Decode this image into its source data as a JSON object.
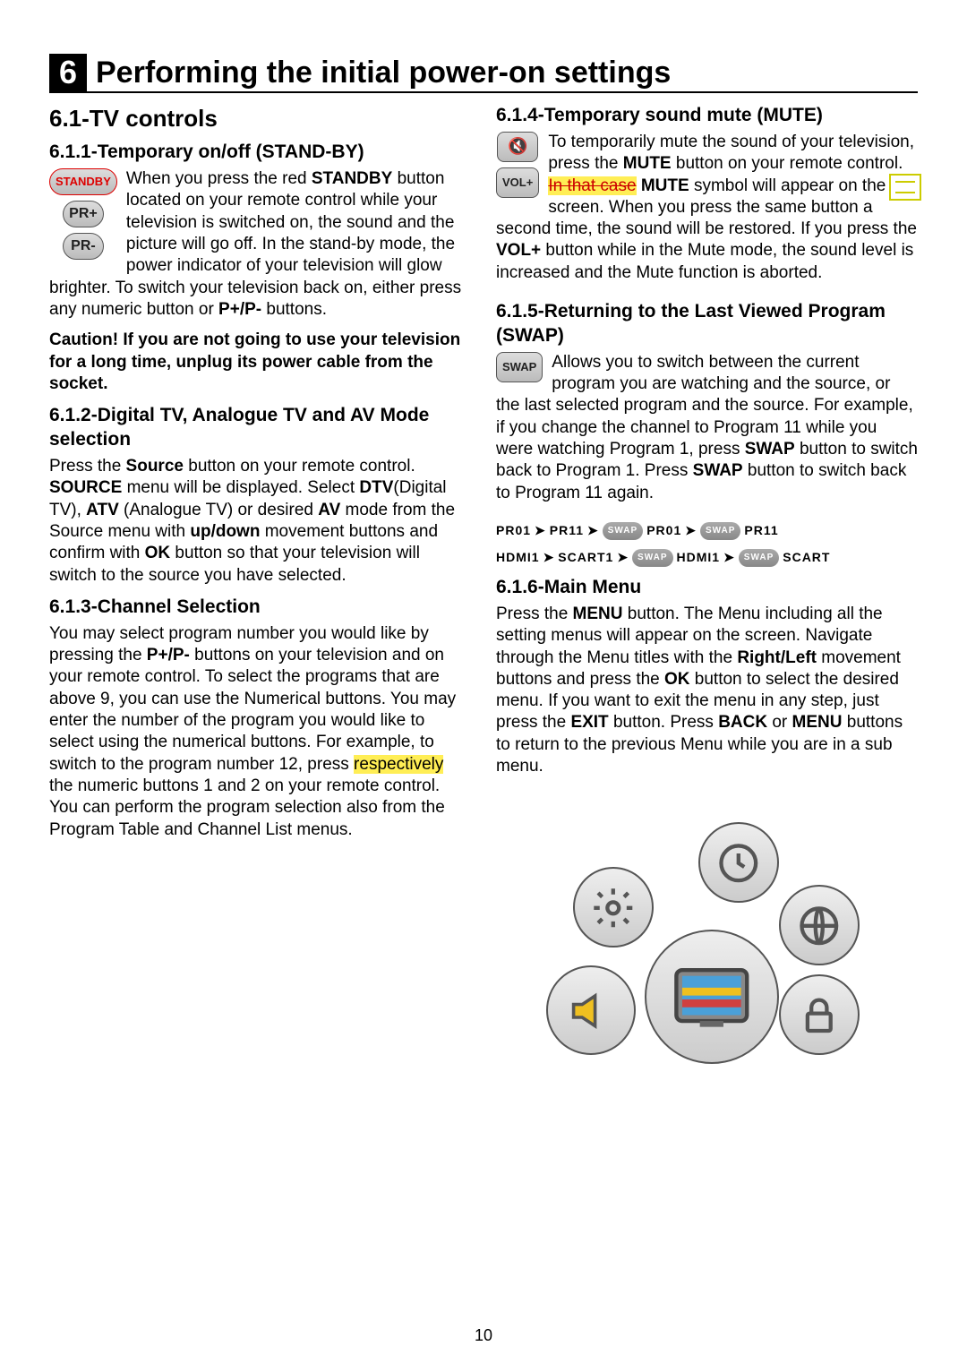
{
  "chapter_number": "6",
  "chapter_title": "Performing the initial power-on settings",
  "page_number": "10",
  "left_col": {
    "h2": "6.1-TV controls",
    "s1_title": "6.1.1-Temporary on/off (STAND-BY)",
    "s1_icons": {
      "standby": "STANDBY",
      "prp": "PR+",
      "prm": "PR-"
    },
    "s1_body_a": "When you press the red ",
    "s1_bold_a": "STANDBY",
    "s1_body_b": " button located on your remote control while your television is switched on, the sound and the picture will go off. In the stand-by mode, the power indicator of your television will glow brighter. To switch your television back on, either press any numeric button or ",
    "s1_bold_b": "P+/P-",
    "s1_body_c": " buttons.",
    "s1_caution": "Caution! If you are not going to use your television for a long time, unplug its power cable from the socket.",
    "s2_title": "6.1.2-Digital TV, Analogue TV and AV Mode selection",
    "s2_body": "Press the <b>Source</b> button on your remote control. <b>SOURCE</b> menu will be displayed. Select <b>DTV</b>(Digital TV), <b>ATV</b> (Analogue TV) or desired <b>AV</b> mode from the Source menu with <b>up/down</b> movement buttons and confirm with <b>OK</b> button so that your television will switch to the source you have selected.",
    "s3_title": "6.1.3-Channel Selection",
    "s3_body_a": "You may select program number you would like by pressing the <b>P+/P-</b> buttons on your television and on your remote control. To select the programs that are above 9, you can use the Numerical buttons. You may enter the number of the program you would like to select using the numerical buttons. For example, to switch to the program number 12, press ",
    "s3_hl": "respectively ",
    "s3_body_b": "the numeric buttons 1 and 2 on your remote control. You can perform the program selection also from the Program Table and Channel List menus."
  },
  "right_col": {
    "s4_title": "6.1.4-Temporary sound mute (MUTE)",
    "s4_icons": {
      "mute": "🔇",
      "vol": "VOL+"
    },
    "s4_body_a": "To temporarily mute the sound of your television, press the ",
    "s4_bold_a": "MUTE",
    "s4_body_b": " button on your remote control. ",
    "s4_strike": "In that case",
    "s4_body_c": " ",
    "s4_bold_b": "MUTE",
    "s4_body_d": " symbol will appear on the screen. When you press the same button a second time, the sound will be restored. If you press the ",
    "s4_bold_c": "VOL+",
    "s4_body_e": " button while in the Mute mode, the sound level is increased and the Mute function is aborted.",
    "s5_title": "6.1.5-Returning to the Last Viewed Program (SWAP)",
    "s5_icon": "SWAP",
    "s5_body": "Allows you to switch between the current program you are watching and the source, or the last selected program and the source. For example, if you change the channel to Program 11 while you were watching Program 1, press <b>SWAP</b> button to switch back to Program 1. Press <b>SWAP</b> button to switch back to Program 11 again.",
    "flow1": {
      "a": "PR01",
      "b": "PR11",
      "swap": "SWAP",
      "c": "PR01",
      "d": "PR11"
    },
    "flow2": {
      "a": "HDMI1",
      "b": "SCART1",
      "swap": "SWAP",
      "c": "HDMI1",
      "d": "SCART"
    },
    "s6_title": "6.1.6-Main Menu",
    "s6_body": "Press the <b>MENU</b> button. The Menu including all the setting menus will appear on the screen. Navigate through the Menu titles with the <b>Right/Left</b> movement buttons and press the <b>OK</b> button to select the desired menu. If you want to exit the menu in any step, just press the <b>EXIT</b> button. Press <b>BACK</b> or <b>MENU</b> buttons to return to the previous Menu while you are in a sub menu."
  },
  "colors": {
    "highlight": "#ffee55",
    "strikethrough": "#cc0000",
    "annotation_border": "#cccc00"
  }
}
